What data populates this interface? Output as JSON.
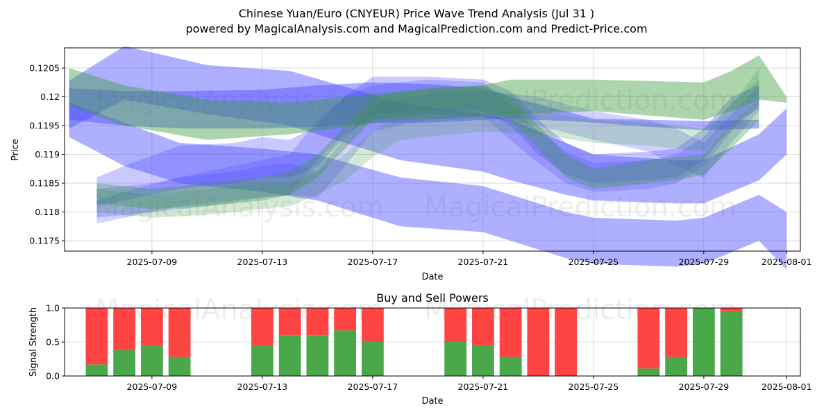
{
  "title_line1": "Chinese Yuan/Euro (CNYEUR) Price Wave Trend Analysis (Jul 31 )",
  "title_line2": "powered by MagicalAnalysis.com and MagicalPrediction.com and Predict-Price.com",
  "watermarks": [
    "MagicalAnalysis.com",
    "MagicalPrediction.com"
  ],
  "chart_data": [
    {
      "type": "area",
      "title": "",
      "xlabel": "Date",
      "ylabel": "Price",
      "x_axis": "date",
      "xlim": [
        "2025-07-05T20:00",
        "2025-08-01T12:00"
      ],
      "ylim": [
        0.11732,
        0.12085
      ],
      "xticks": [
        "2025-07-09",
        "2025-07-13",
        "2025-07-17",
        "2025-07-21",
        "2025-07-25",
        "2025-07-29",
        "2025-08-01"
      ],
      "yticks": [
        0.1175,
        0.118,
        0.1185,
        0.119,
        0.1195,
        0.12,
        0.1205
      ],
      "grid": true,
      "colors": {
        "blue": "#4d4dff",
        "green": "#3c9a3c"
      },
      "series": [
        {
          "color": "blue",
          "opacity": 0.45,
          "x": [
            "2025-07-06",
            "2025-07-08",
            "2025-07-11",
            "2025-07-14",
            "2025-07-18",
            "2025-07-21",
            "2025-07-22",
            "2025-07-24",
            "2025-07-25",
            "2025-07-28",
            "2025-07-29",
            "2025-07-31",
            "2025-08-01"
          ],
          "upper": [
            0.12028,
            0.12088,
            0.12055,
            0.12045,
            0.1199,
            0.1197,
            0.1196,
            0.1192,
            0.119,
            0.1189,
            0.1189,
            0.11935,
            0.1198
          ],
          "lower": [
            0.11945,
            0.11995,
            0.1197,
            0.1195,
            0.1189,
            0.1187,
            0.11855,
            0.1183,
            0.1182,
            0.11815,
            0.11815,
            0.11855,
            0.119
          ]
        },
        {
          "color": "blue",
          "opacity": 0.45,
          "x": [
            "2025-07-06",
            "2025-07-08",
            "2025-07-10",
            "2025-07-13",
            "2025-07-15",
            "2025-07-18",
            "2025-07-21",
            "2025-07-24",
            "2025-07-25",
            "2025-07-28",
            "2025-07-29",
            "2025-07-31",
            "2025-08-01"
          ],
          "upper": [
            0.1199,
            0.11955,
            0.1192,
            0.1191,
            0.119,
            0.1186,
            0.11845,
            0.118,
            0.1179,
            0.11785,
            0.1179,
            0.1183,
            0.118
          ],
          "lower": [
            0.1193,
            0.1188,
            0.1185,
            0.11835,
            0.1182,
            0.11775,
            0.11765,
            0.1172,
            0.1171,
            0.11705,
            0.1171,
            0.1175,
            0.117
          ]
        },
        {
          "color": "blue",
          "opacity": 0.45,
          "x": [
            "2025-07-06",
            "2025-07-08",
            "2025-07-10",
            "2025-07-13",
            "2025-07-15",
            "2025-07-17",
            "2025-07-19",
            "2025-07-21",
            "2025-07-22",
            "2025-07-24",
            "2025-07-25",
            "2025-07-27",
            "2025-07-29",
            "2025-07-31"
          ],
          "upper": [
            0.12015,
            0.1201,
            0.1201,
            0.12012,
            0.1202,
            0.12025,
            0.12022,
            0.12015,
            0.12,
            0.11975,
            0.11962,
            0.1196,
            0.11958,
            0.1196
          ],
          "lower": [
            0.1196,
            0.1195,
            0.11945,
            0.11945,
            0.11948,
            0.11955,
            0.11955,
            0.1196,
            0.11962,
            0.11958,
            0.11955,
            0.11948,
            0.11942,
            0.11945
          ]
        },
        {
          "color": "blue",
          "opacity": 0.3,
          "x": [
            "2025-07-07",
            "2025-07-08",
            "2025-07-10",
            "2025-07-12",
            "2025-07-13",
            "2025-07-14",
            "2025-07-15",
            "2025-07-16",
            "2025-07-17",
            "2025-07-19",
            "2025-07-21",
            "2025-07-22",
            "2025-07-23",
            "2025-07-24",
            "2025-07-25",
            "2025-07-27",
            "2025-07-28",
            "2025-07-29",
            "2025-07-30",
            "2025-07-31"
          ],
          "upper": [
            0.1186,
            0.1188,
            0.11915,
            0.1192,
            0.1193,
            0.11925,
            0.1195,
            0.12,
            0.12035,
            0.12035,
            0.1203,
            0.1201,
            0.1196,
            0.1192,
            0.119,
            0.11905,
            0.1191,
            0.11945,
            0.12,
            0.1202
          ],
          "lower": [
            0.1181,
            0.1182,
            0.1184,
            0.1185,
            0.1186,
            0.1186,
            0.1188,
            0.1193,
            0.1197,
            0.11975,
            0.11975,
            0.1195,
            0.119,
            0.11865,
            0.1185,
            0.11855,
            0.1186,
            0.1189,
            0.1195,
            0.1198
          ]
        },
        {
          "color": "blue",
          "opacity": 0.25,
          "x": [
            "2025-07-07",
            "2025-07-09",
            "2025-07-11",
            "2025-07-13",
            "2025-07-14",
            "2025-07-15",
            "2025-07-16",
            "2025-07-17",
            "2025-07-19",
            "2025-07-21",
            "2025-07-22",
            "2025-07-23",
            "2025-07-24",
            "2025-07-25",
            "2025-07-27",
            "2025-07-28",
            "2025-07-29",
            "2025-07-30",
            "2025-07-31"
          ],
          "upper": [
            0.1184,
            0.1185,
            0.1187,
            0.1189,
            0.119,
            0.1196,
            0.12,
            0.1202,
            0.1203,
            0.12025,
            0.11985,
            0.1194,
            0.11905,
            0.11885,
            0.1189,
            0.119,
            0.1193,
            0.1199,
            0.1203
          ],
          "lower": [
            0.1179,
            0.118,
            0.1181,
            0.11825,
            0.1183,
            0.1189,
            0.11935,
            0.1196,
            0.1197,
            0.11965,
            0.11925,
            0.11885,
            0.1185,
            0.11835,
            0.1184,
            0.1185,
            0.1188,
            0.1194,
            0.11985
          ]
        },
        {
          "color": "blue",
          "opacity": 0.25,
          "x": [
            "2025-07-07",
            "2025-07-08",
            "2025-07-10",
            "2025-07-12",
            "2025-07-13",
            "2025-07-14",
            "2025-07-15",
            "2025-07-16",
            "2025-07-17",
            "2025-07-19",
            "2025-07-21",
            "2025-07-23",
            "2025-07-25",
            "2025-07-27",
            "2025-07-28",
            "2025-07-29",
            "2025-07-30",
            "2025-07-31"
          ],
          "upper": [
            0.1182,
            0.11835,
            0.1186,
            0.1187,
            0.1188,
            0.11885,
            0.1187,
            0.1193,
            0.11985,
            0.12005,
            0.1201,
            0.12,
            0.11975,
            0.1196,
            0.11945,
            0.1192,
            0.1197,
            0.1202
          ],
          "lower": [
            0.1178,
            0.1179,
            0.1181,
            0.1182,
            0.11825,
            0.1183,
            0.11825,
            0.1188,
            0.1194,
            0.1196,
            0.11965,
            0.1195,
            0.11925,
            0.11905,
            0.1188,
            0.1186,
            0.1192,
            0.11975
          ]
        },
        {
          "color": "green",
          "opacity": 0.42,
          "x": [
            "2025-07-06",
            "2025-07-08",
            "2025-07-11",
            "2025-07-14",
            "2025-07-18",
            "2025-07-21",
            "2025-07-22",
            "2025-07-25",
            "2025-07-29",
            "2025-07-30",
            "2025-07-31",
            "2025-08-01"
          ],
          "upper": [
            0.1205,
            0.1202,
            0.11995,
            0.1199,
            0.1201,
            0.1202,
            0.1203,
            0.1203,
            0.12025,
            0.12045,
            0.12072,
            0.12
          ],
          "lower": [
            0.11985,
            0.1195,
            0.11925,
            0.11935,
            0.1196,
            0.11965,
            0.1197,
            0.11975,
            0.1196,
            0.11975,
            0.11995,
            0.1199
          ]
        },
        {
          "color": "green",
          "opacity": 0.35,
          "x": [
            "2025-07-07",
            "2025-07-09",
            "2025-07-11",
            "2025-07-13",
            "2025-07-14",
            "2025-07-15",
            "2025-07-16",
            "2025-07-17",
            "2025-07-19",
            "2025-07-21",
            "2025-07-22",
            "2025-07-23",
            "2025-07-24",
            "2025-07-25",
            "2025-07-27",
            "2025-07-28",
            "2025-07-29",
            "2025-07-30",
            "2025-07-31"
          ],
          "upper": [
            0.1185,
            0.1184,
            0.1185,
            0.1186,
            0.1187,
            0.119,
            0.1195,
            0.12,
            0.12015,
            0.1202,
            0.12,
            0.1195,
            0.119,
            0.11875,
            0.1189,
            0.11895,
            0.119,
            0.1195,
            0.12
          ],
          "lower": [
            0.11815,
            0.11805,
            0.1181,
            0.1182,
            0.1183,
            0.1186,
            0.1191,
            0.1196,
            0.11975,
            0.1198,
            0.1196,
            0.1191,
            0.1186,
            0.1184,
            0.1185,
            0.11855,
            0.11865,
            0.1191,
            0.1196
          ]
        },
        {
          "color": "green",
          "opacity": 0.22,
          "x": [
            "2025-07-07",
            "2025-07-09",
            "2025-07-11",
            "2025-07-13",
            "2025-07-14",
            "2025-07-15",
            "2025-07-16",
            "2025-07-17",
            "2025-07-18",
            "2025-07-21",
            "2025-07-23",
            "2025-07-25",
            "2025-07-27",
            "2025-07-29",
            "2025-07-30",
            "2025-07-31"
          ],
          "upper": [
            0.1184,
            0.1183,
            0.1184,
            0.1185,
            0.1185,
            0.1187,
            0.119,
            0.1194,
            0.1197,
            0.1198,
            0.11975,
            0.1196,
            0.11955,
            0.11945,
            0.11985,
            0.1205
          ],
          "lower": [
            0.118,
            0.1179,
            0.11795,
            0.11805,
            0.1181,
            0.1183,
            0.11855,
            0.11895,
            0.11925,
            0.1194,
            0.11935,
            0.1192,
            0.11915,
            0.11905,
            0.1194,
            0.12005
          ]
        }
      ]
    },
    {
      "type": "bar",
      "title": "Buy and Sell Powers",
      "xlabel": "Date",
      "ylabel": "Signal Strength",
      "x_axis": "date",
      "xlim": [
        "2025-07-05T20:00",
        "2025-08-01T12:00"
      ],
      "ylim": [
        0,
        1.0
      ],
      "xticks": [
        "2025-07-09",
        "2025-07-13",
        "2025-07-17",
        "2025-07-21",
        "2025-07-25",
        "2025-07-29",
        "2025-08-01"
      ],
      "yticks": [
        0.0,
        0.5,
        1.0
      ],
      "grid": true,
      "colors": {
        "buy": "#4aa84a",
        "sell": "#ff4444"
      },
      "categories": [
        "2025-07-07",
        "2025-07-08",
        "2025-07-09",
        "2025-07-10",
        "2025-07-13",
        "2025-07-14",
        "2025-07-15",
        "2025-07-16",
        "2025-07-17",
        "2025-07-20",
        "2025-07-21",
        "2025-07-22",
        "2025-07-23",
        "2025-07-24",
        "2025-07-27",
        "2025-07-28",
        "2025-07-29",
        "2025-07-30"
      ],
      "series": [
        {
          "color": "buy",
          "values": [
            0.17,
            0.38,
            0.45,
            0.28,
            0.45,
            0.6,
            0.6,
            0.67,
            0.5,
            0.5,
            0.45,
            0.28,
            0.0,
            0.0,
            0.11,
            0.28,
            1.0,
            0.95
          ]
        },
        {
          "color": "sell",
          "values": [
            0.83,
            0.62,
            0.55,
            0.72,
            0.55,
            0.4,
            0.4,
            0.33,
            0.5,
            0.5,
            0.55,
            0.72,
            1.0,
            1.0,
            0.89,
            0.72,
            0.0,
            0.05
          ]
        }
      ]
    }
  ]
}
